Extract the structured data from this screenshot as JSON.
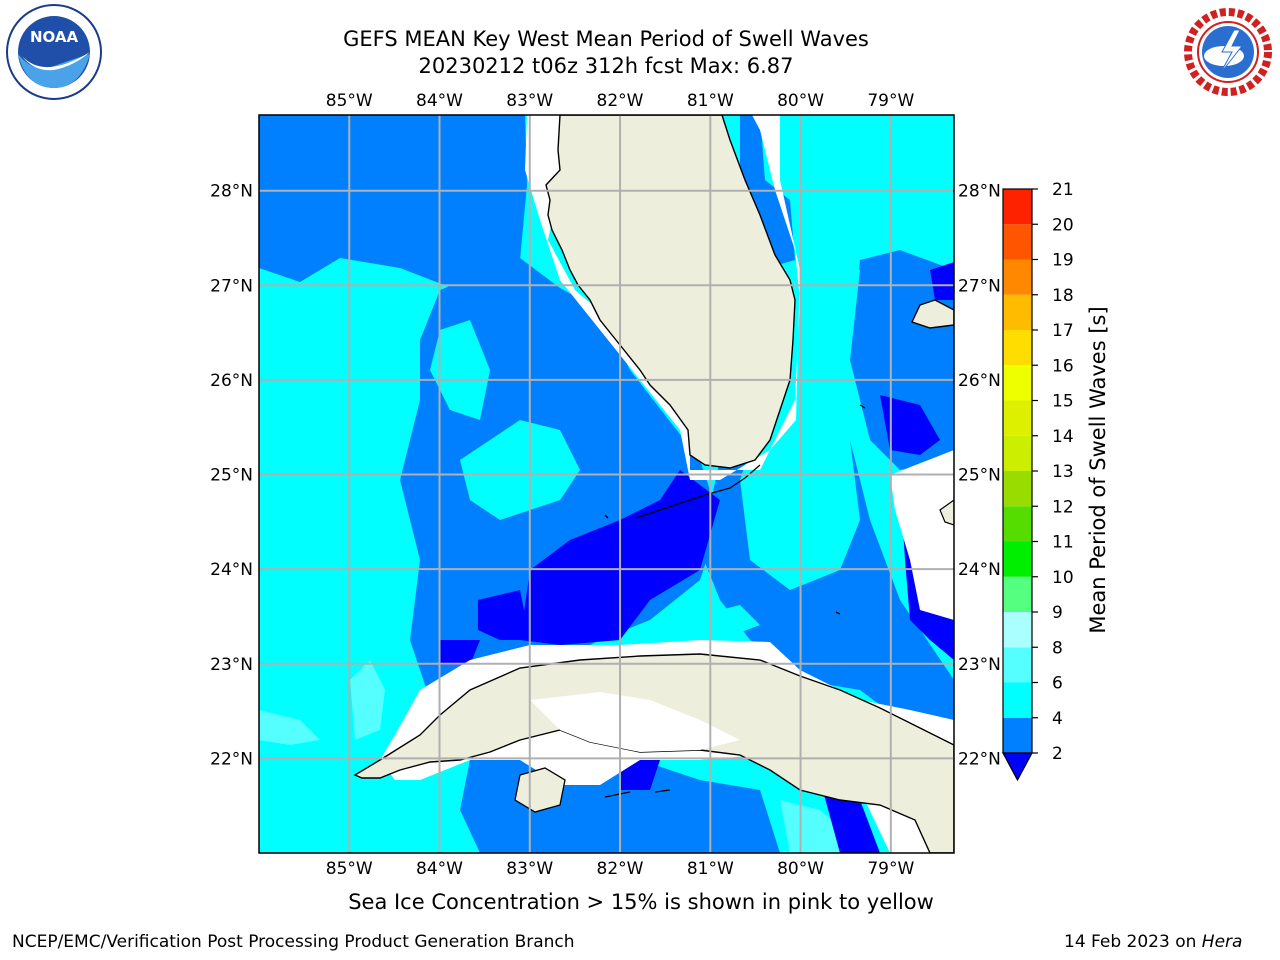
{
  "title": {
    "line1": "GEFS MEAN Key West Mean Period of Swell Waves",
    "line2": "20230212 t06z 312h fcst   Max: 6.87"
  },
  "logos": {
    "left": {
      "icon": "noaa-logo",
      "text": "NOAA"
    },
    "right": {
      "icon": "nws-logo",
      "text": "NATIONAL WEATHER SERVICE"
    }
  },
  "map": {
    "lon_labels": [
      "85°W",
      "84°W",
      "83°W",
      "82°W",
      "81°W",
      "80°W",
      "79°W"
    ],
    "lat_labels": [
      "28°N",
      "27°N",
      "26°N",
      "25°N",
      "24°N",
      "23°N",
      "22°N"
    ],
    "lon_range": [
      -86.0,
      -78.3
    ],
    "lat_range": [
      21.0,
      28.8
    ],
    "colors": {
      "land": "#eeeedd",
      "ocean_2_4": "#0080ff",
      "ocean_4_6": "#00ffff",
      "ocean_6_8": "#55ffff",
      "ocean_below_2": "#0000ff",
      "grid": "#b0b0b0"
    }
  },
  "colorbar": {
    "title": "Mean Period of Swell Waves [s]",
    "levels": [
      "2",
      "4",
      "6",
      "8",
      "9",
      "10",
      "11",
      "12",
      "13",
      "14",
      "15",
      "16",
      "17",
      "18",
      "19",
      "20",
      "21"
    ],
    "colors": [
      "#0080ff",
      "#00ffff",
      "#55ffff",
      "#aaffff",
      "#55ff80",
      "#00ee00",
      "#55dd00",
      "#99dd00",
      "#ccee00",
      "#ddf000",
      "#eeff00",
      "#ffdd00",
      "#ffbb00",
      "#ff8800",
      "#ff5500",
      "#ff2200"
    ],
    "extend_color": "#0000ff"
  },
  "caption": "Sea Ice Concentration > 15% is shown in pink to yellow",
  "footer": {
    "left": "NCEP/EMC/Verification Post Processing Product Generation Branch",
    "right_date": "14 Feb 2023 on ",
    "right_host": "Hera"
  }
}
